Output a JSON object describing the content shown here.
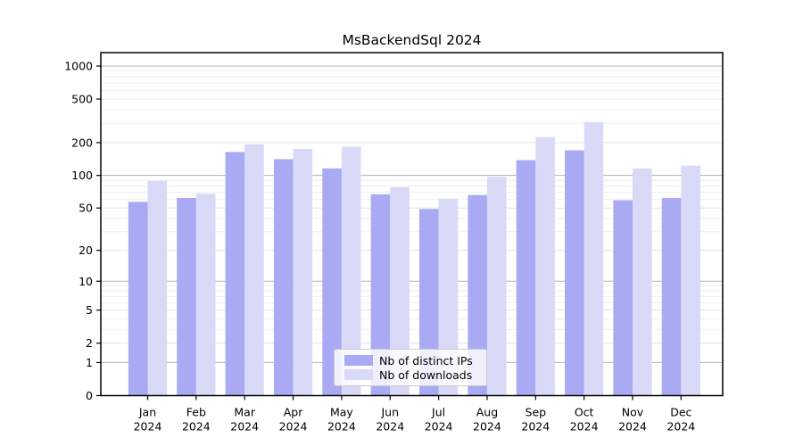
{
  "title": "MsBackendSql 2024",
  "chart_data": {
    "type": "bar",
    "scale": "log1p",
    "title": "MsBackendSql 2024",
    "xlabel": "",
    "ylabel": "",
    "categories": [
      "Jan",
      "Feb",
      "Mar",
      "Apr",
      "May",
      "Jun",
      "Jul",
      "Aug",
      "Sep",
      "Oct",
      "Nov",
      "Dec"
    ],
    "year_label": "2024",
    "series": [
      {
        "name": "Nb of distinct IPs",
        "color": "#a9a9f4",
        "values": [
          57,
          62,
          164,
          141,
          116,
          67,
          49,
          66,
          138,
          170,
          59,
          62
        ]
      },
      {
        "name": "Nb of downloads",
        "color": "#d9d9f8",
        "values": [
          89,
          68,
          193,
          175,
          183,
          78,
          61,
          97,
          225,
          308,
          116,
          123
        ]
      }
    ],
    "yticks": [
      0,
      1,
      2,
      5,
      10,
      20,
      50,
      100,
      200,
      500,
      1000
    ],
    "ylim": [
      0,
      1000
    ],
    "grid": true,
    "legend_position": "bottom-center"
  }
}
